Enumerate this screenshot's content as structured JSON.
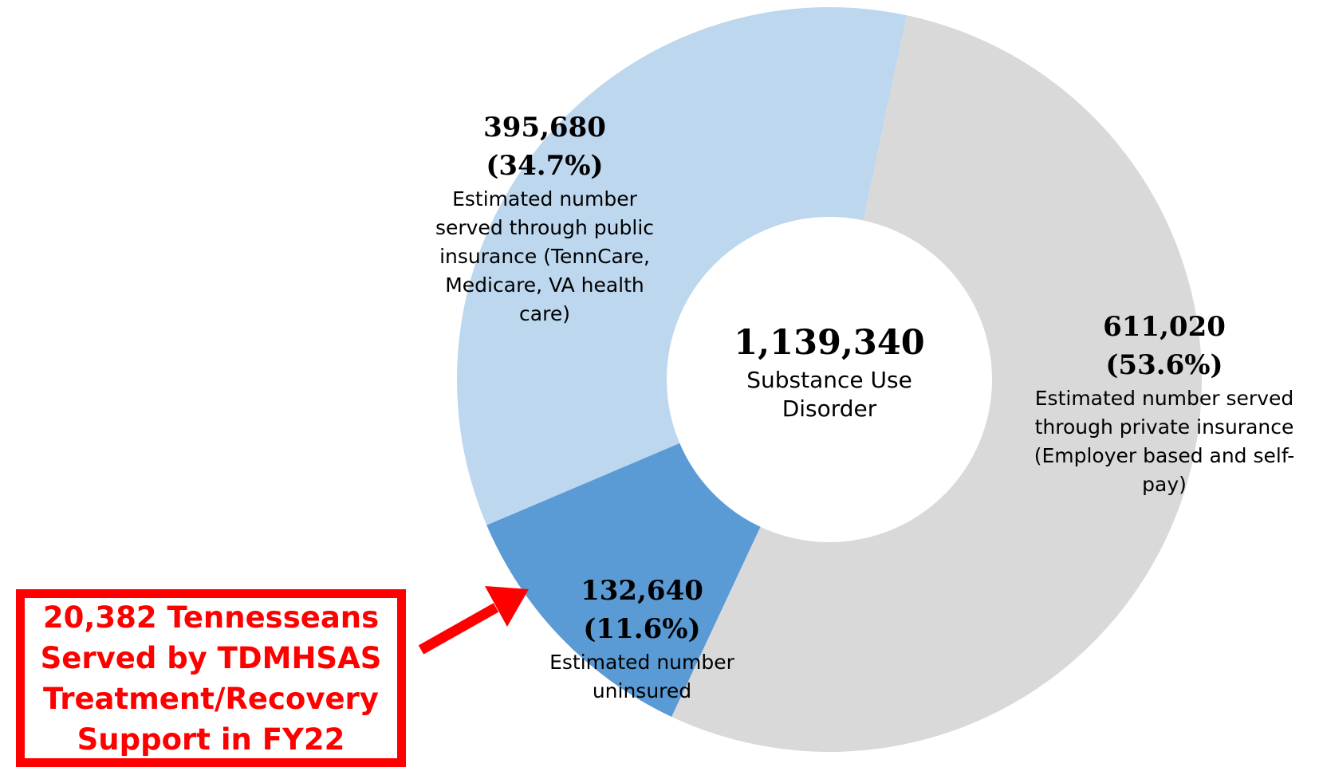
{
  "chart_data": {
    "type": "pie",
    "donut": true,
    "total": "1,139,340",
    "center_label": "Substance Use Disorder",
    "slices": [
      {
        "value": 611020,
        "value_label": "611,020",
        "percent_label": "(53.6%)",
        "description": "Estimated number served through private insurance (Employer based and self-pay)",
        "color": "#d9d9d9"
      },
      {
        "value": 132640,
        "value_label": "132,640",
        "percent_label": "(11.6%)",
        "description": "Estimated number uninsured",
        "color": "#5b9bd5"
      },
      {
        "value": 395680,
        "value_label": "395,680",
        "percent_label": "(34.7%)",
        "description": "Estimated number served through public insurance (TennCare, Medicare, VA health care)",
        "color": "#bdd7ee"
      }
    ]
  },
  "callout": {
    "text": "20,382 Tennesseans\nServed by TDMHSAS\nTreatment/Recovery\nSupport in FY22",
    "color": "#ff0000"
  }
}
